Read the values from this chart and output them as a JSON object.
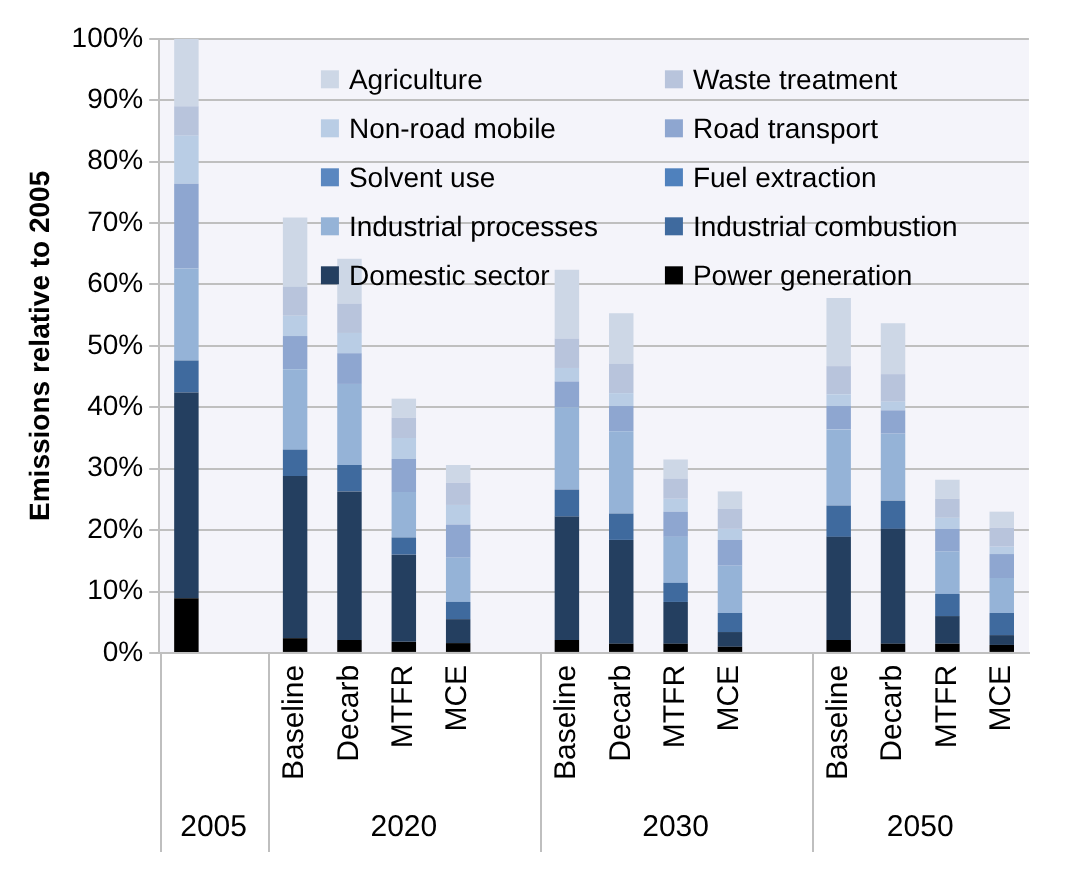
{
  "chart_data": {
    "type": "bar",
    "stacked": true,
    "ylabel": "Emissions relative to 2005",
    "categories": [
      null,
      null,
      "Baseline",
      "Decarb",
      "MTFR",
      "MCE",
      null,
      "Baseline",
      "Decarb",
      "MTFR",
      "MCE",
      null,
      "Baseline",
      "Decarb",
      "MTFR",
      "MCE"
    ],
    "series": [
      {
        "name": "Power generation",
        "color": "#000000",
        "values": [
          8.9,
          null,
          2.4,
          2.1,
          1.8,
          1.6,
          null,
          2.1,
          1.5,
          1.5,
          1.0,
          null,
          2.1,
          1.5,
          1.5,
          1.3
        ]
      },
      {
        "name": "Domestic sector",
        "color": "#243f60",
        "values": [
          33.5,
          null,
          26.4,
          24.2,
          14.2,
          3.9,
          null,
          20.1,
          16.9,
          6.8,
          2.4,
          null,
          16.8,
          18.7,
          4.5,
          1.6
        ]
      },
      {
        "name": "Industrial combustion",
        "color": "#3f6a9e",
        "values": [
          5.2,
          null,
          4.3,
          4.3,
          2.8,
          2.8,
          null,
          4.4,
          4.3,
          3.1,
          3.1,
          null,
          5.1,
          4.6,
          3.6,
          3.6
        ]
      },
      {
        "name": "Industrial processes",
        "color": "#95b3d7",
        "values": [
          15.0,
          null,
          13.1,
          13.2,
          7.4,
          7.2,
          null,
          13.4,
          13.4,
          7.5,
          7.7,
          null,
          12.4,
          10.9,
          6.9,
          5.7
        ]
      },
      {
        "name": "Fuel extraction",
        "color": "#4f81bd",
        "values": [
          0,
          null,
          0,
          0,
          0,
          0,
          null,
          0,
          0,
          0,
          0,
          null,
          0,
          0,
          0,
          0
        ]
      },
      {
        "name": "Solvent use",
        "color": "#5a87c0",
        "values": [
          0,
          null,
          0,
          0,
          0,
          0,
          null,
          0,
          0,
          0,
          0,
          null,
          0,
          0,
          0,
          0
        ]
      },
      {
        "name": "Road transport",
        "color": "#8ea6d0",
        "values": [
          13.8,
          null,
          5.4,
          5.0,
          5.4,
          5.4,
          null,
          4.2,
          4.1,
          4.1,
          4.2,
          null,
          3.8,
          3.8,
          3.7,
          3.9
        ]
      },
      {
        "name": "Non-road mobile",
        "color": "#b9cde5",
        "values": [
          7.8,
          null,
          3.3,
          3.3,
          3.4,
          3.2,
          null,
          2.2,
          2.1,
          2.1,
          1.8,
          null,
          1.9,
          1.4,
          1.8,
          1.2
        ]
      },
      {
        "name": "Waste treatment",
        "color": "#b8c4dc",
        "values": [
          4.8,
          null,
          4.7,
          4.8,
          3.3,
          3.6,
          null,
          4.8,
          4.8,
          3.3,
          3.3,
          null,
          4.6,
          4.5,
          3.1,
          3.1
        ]
      },
      {
        "name": "Agriculture",
        "color": "#cdd7e6",
        "values": [
          11.0,
          null,
          11.3,
          7.3,
          3.1,
          2.9,
          null,
          11.2,
          8.2,
          3.1,
          2.8,
          null,
          11.1,
          8.3,
          3.1,
          2.6
        ]
      }
    ],
    "ylim": [
      0,
      100
    ],
    "yticks": [
      {
        "value": 0,
        "label": "0%"
      },
      {
        "value": 10,
        "label": "10%"
      },
      {
        "value": 20,
        "label": "20%"
      },
      {
        "value": 30,
        "label": "30%"
      },
      {
        "value": 40,
        "label": "40%"
      },
      {
        "value": 50,
        "label": "50%"
      },
      {
        "value": 60,
        "label": "60%"
      },
      {
        "value": 70,
        "label": "70%"
      },
      {
        "value": 80,
        "label": "80%"
      },
      {
        "value": 90,
        "label": "90%"
      },
      {
        "value": 100,
        "label": "100%"
      }
    ],
    "grid": "y",
    "legend": "top right",
    "annotations": [
      "2005",
      "2020",
      "2030",
      "2050"
    ]
  }
}
